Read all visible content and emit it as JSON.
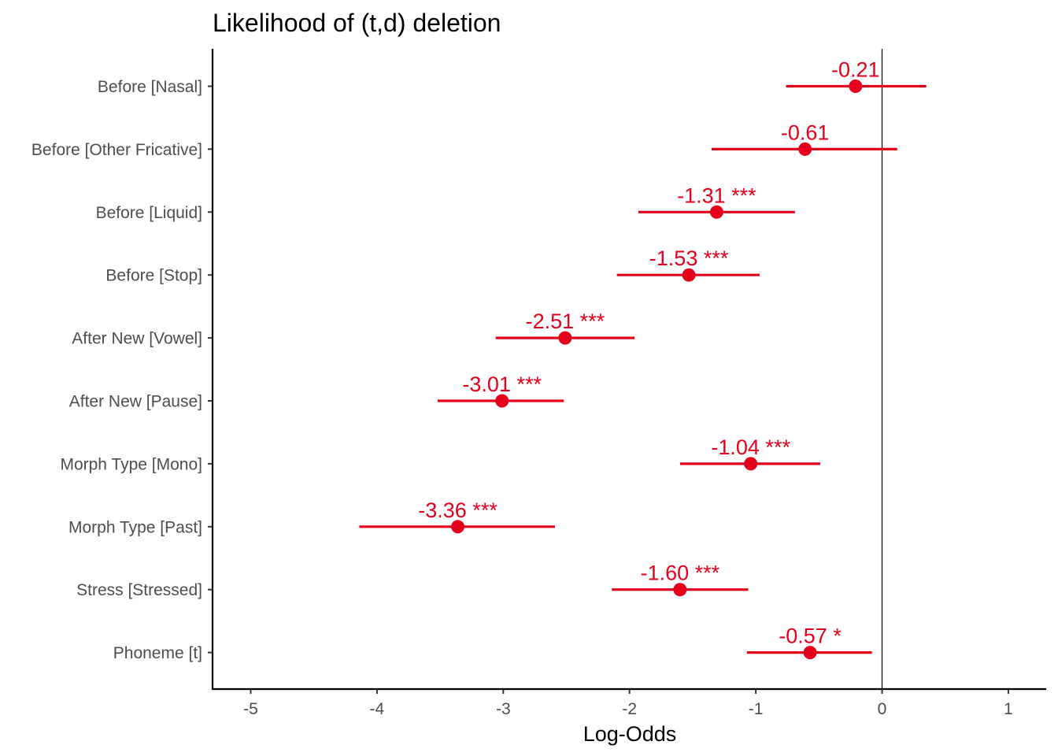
{
  "chart_data": {
    "type": "scatter",
    "title": "Likelihood of (t,d) deletion",
    "xlabel": "Log-Odds",
    "ylabel": "",
    "xlim": [
      -5.3,
      1.3
    ],
    "x_ticks": [
      "-5",
      "-4",
      "-3",
      "-2",
      "-1",
      "0",
      "1"
    ],
    "x_tick_values": [
      -5,
      -4,
      -3,
      -2,
      -1,
      0,
      1
    ],
    "reference_line": 0,
    "grid": false,
    "color": "#e2001a",
    "terms": [
      {
        "term": "Before [Nasal]",
        "estimate": -0.21,
        "ci": [
          -0.76,
          0.35
        ],
        "label": "-0.21"
      },
      {
        "term": "Before [Other Fricative]",
        "estimate": -0.61,
        "ci": [
          -1.35,
          0.12
        ],
        "label": "-0.61"
      },
      {
        "term": "Before [Liquid]",
        "estimate": -1.31,
        "ci": [
          -1.93,
          -0.69
        ],
        "label": "-1.31 ***"
      },
      {
        "term": "Before [Stop]",
        "estimate": -1.53,
        "ci": [
          -2.1,
          -0.97
        ],
        "label": "-1.53 ***"
      },
      {
        "term": "After New [Vowel]",
        "estimate": -2.51,
        "ci": [
          -3.06,
          -1.96
        ],
        "label": "-2.51 ***"
      },
      {
        "term": "After New [Pause]",
        "estimate": -3.01,
        "ci": [
          -3.52,
          -2.52
        ],
        "label": "-3.01 ***"
      },
      {
        "term": "Morph Type [Mono]",
        "estimate": -1.04,
        "ci": [
          -1.6,
          -0.49
        ],
        "label": "-1.04 ***"
      },
      {
        "term": "Morph Type [Past]",
        "estimate": -3.36,
        "ci": [
          -4.14,
          -2.59
        ],
        "label": "-3.36 ***"
      },
      {
        "term": "Stress [Stressed]",
        "estimate": -1.6,
        "ci": [
          -2.14,
          -1.06
        ],
        "label": "-1.60 ***"
      },
      {
        "term": "Phoneme [t]",
        "estimate": -0.57,
        "ci": [
          -1.07,
          -0.08
        ],
        "label": "-0.57 *"
      }
    ]
  }
}
